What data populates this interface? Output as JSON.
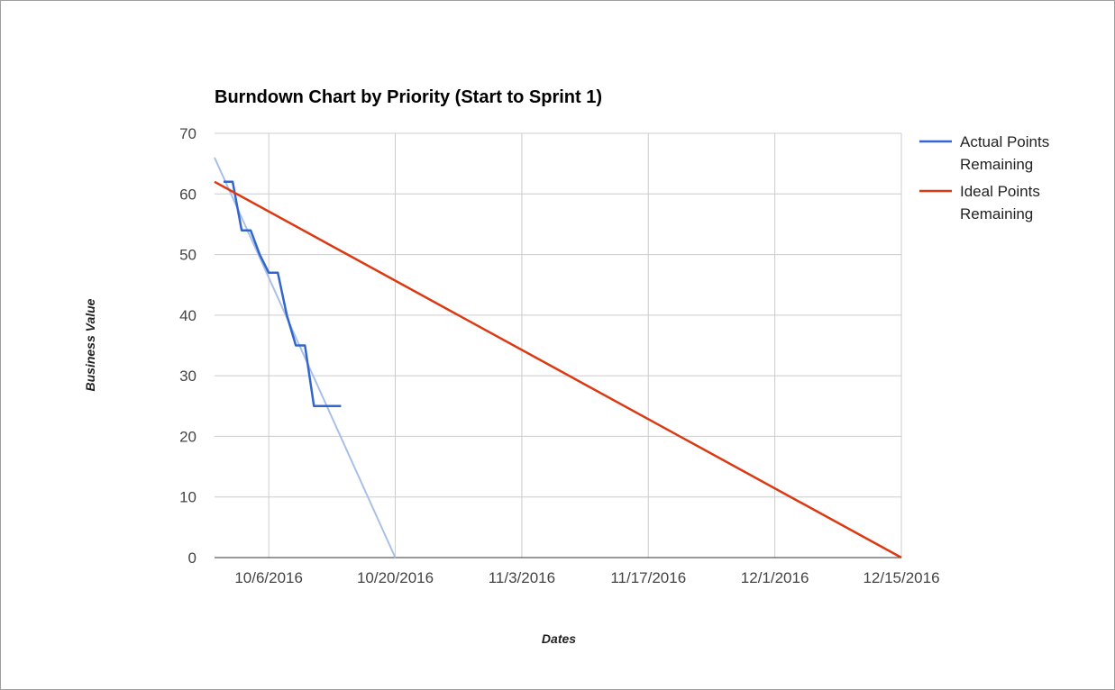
{
  "chart_data": {
    "type": "line",
    "title": "Burndown Chart by Priority (Start to Sprint 1)",
    "xlabel": "Dates",
    "ylabel": "Business Value",
    "ylim": [
      0,
      70
    ],
    "yticks": [
      0,
      10,
      20,
      30,
      40,
      50,
      60,
      70
    ],
    "xlim": [
      "2016-09-30",
      "2016-12-15"
    ],
    "xticks": [
      {
        "date": "2016-10-06",
        "label": "10/6/2016"
      },
      {
        "date": "2016-10-20",
        "label": "10/20/2016"
      },
      {
        "date": "2016-11-03",
        "label": "11/3/2016"
      },
      {
        "date": "2016-11-17",
        "label": "11/17/2016"
      },
      {
        "date": "2016-12-01",
        "label": "12/1/2016"
      },
      {
        "date": "2016-12-15",
        "label": "12/15/2016"
      }
    ],
    "grid": true,
    "legend_position": "right",
    "series": [
      {
        "name": "Actual Points Remaining",
        "color": "#3366cc",
        "points": [
          {
            "x": "2016-10-01",
            "y": 62
          },
          {
            "x": "2016-10-02",
            "y": 62
          },
          {
            "x": "2016-10-03",
            "y": 54
          },
          {
            "x": "2016-10-04",
            "y": 54
          },
          {
            "x": "2016-10-05",
            "y": 50
          },
          {
            "x": "2016-10-06",
            "y": 47
          },
          {
            "x": "2016-10-07",
            "y": 47
          },
          {
            "x": "2016-10-08",
            "y": 40
          },
          {
            "x": "2016-10-09",
            "y": 35
          },
          {
            "x": "2016-10-10",
            "y": 35
          },
          {
            "x": "2016-10-11",
            "y": 25
          },
          {
            "x": "2016-10-12",
            "y": 25
          },
          {
            "x": "2016-10-13",
            "y": 25
          },
          {
            "x": "2016-10-14",
            "y": 25
          }
        ]
      },
      {
        "name": "Ideal Points Remaining",
        "color": "#dc3912",
        "points": [
          {
            "x": "2016-09-30",
            "y": 62
          },
          {
            "x": "2016-12-15",
            "y": 0
          }
        ]
      }
    ],
    "trendline": {
      "color": "#a8c0e8",
      "points": [
        {
          "x": "2016-09-30",
          "y": 66
        },
        {
          "x": "2016-10-20",
          "y": 0
        }
      ]
    }
  }
}
